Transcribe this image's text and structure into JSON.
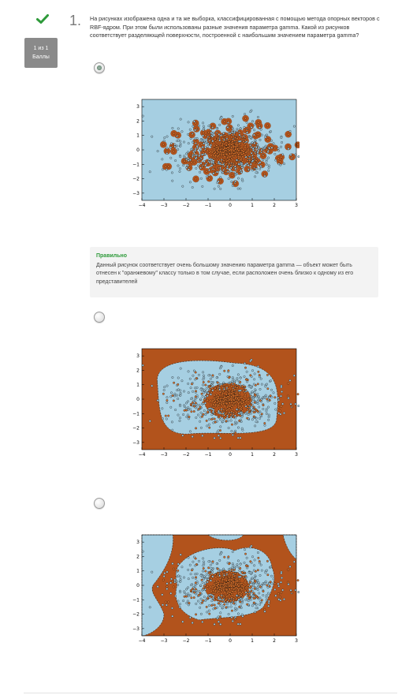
{
  "question": {
    "number": "1.",
    "grade_label": "1 из 1\nБаллы",
    "text": "На рисунках изображена одна и та же выборка, классифицированная с помощью метода опорных векторов с RBF-ядром. При этом были использованы разные значения параметра gamma. Какой из рисунков соответствует разделяющей поверхности, построенной с наибольшим значением параметра gamma?"
  },
  "feedback": {
    "title": "Правильно",
    "text": "Данный рисунок соответствует очень большому значению параметра gamma — объект может быть отнесен к \"оранжевому\" классу только в том случае, если расположен очень близко к одному из его представителей"
  },
  "options": [
    {
      "selected": true
    },
    {
      "selected": false
    },
    {
      "selected": false
    }
  ],
  "plot_axes": {
    "x_ticks": [
      "−4",
      "−3",
      "−2",
      "−1",
      "0",
      "1",
      "2",
      "3"
    ],
    "y_ticks": [
      "3",
      "2",
      "1",
      "0",
      "−1",
      "−2",
      "−3"
    ]
  },
  "colors": {
    "check": "#2e9a3a",
    "blue_region": "#a6cfe2",
    "orange_region": "#b2531c",
    "blue_point": "#a6cfe2",
    "orange_point": "#e0732a"
  }
}
